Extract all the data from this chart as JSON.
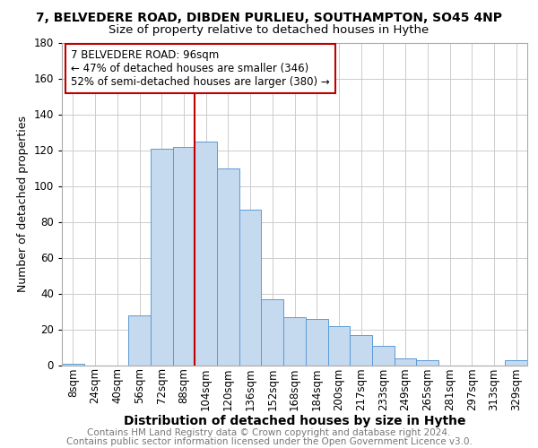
{
  "title": "7, BELVEDERE ROAD, DIBDEN PURLIEU, SOUTHAMPTON, SO45 4NP",
  "subtitle": "Size of property relative to detached houses in Hythe",
  "xlabel": "Distribution of detached houses by size in Hythe",
  "ylabel": "Number of detached properties",
  "categories": [
    "8sqm",
    "24sqm",
    "40sqm",
    "56sqm",
    "72sqm",
    "88sqm",
    "104sqm",
    "120sqm",
    "136sqm",
    "152sqm",
    "168sqm",
    "184sqm",
    "200sqm",
    "217sqm",
    "233sqm",
    "249sqm",
    "265sqm",
    "281sqm",
    "297sqm",
    "313sqm",
    "329sqm"
  ],
  "values": [
    1,
    0,
    0,
    28,
    121,
    122,
    125,
    110,
    87,
    37,
    27,
    26,
    22,
    17,
    11,
    4,
    3,
    0,
    0,
    0,
    3
  ],
  "bar_color": "#c5d9ef",
  "bar_edge_color": "#5b9bd5",
  "vline_x_index": 6.0,
  "vline_color": "#c00000",
  "annotation_text": "7 BELVEDERE ROAD: 96sqm\n← 47% of detached houses are smaller (346)\n52% of semi-detached houses are larger (380) →",
  "annotation_box_color": "#ffffff",
  "annotation_box_edge_color": "#c00000",
  "footnote_line1": "Contains HM Land Registry data © Crown copyright and database right 2024.",
  "footnote_line2": "Contains public sector information licensed under the Open Government Licence v3.0.",
  "ylim": [
    0,
    180
  ],
  "yticks": [
    0,
    20,
    40,
    60,
    80,
    100,
    120,
    140,
    160,
    180
  ],
  "title_fontsize": 10,
  "subtitle_fontsize": 9.5,
  "xlabel_fontsize": 10,
  "ylabel_fontsize": 9,
  "tick_fontsize": 8.5,
  "annotation_fontsize": 8.5,
  "footnote_fontsize": 7.5,
  "background_color": "#ffffff",
  "grid_color": "#cccccc"
}
